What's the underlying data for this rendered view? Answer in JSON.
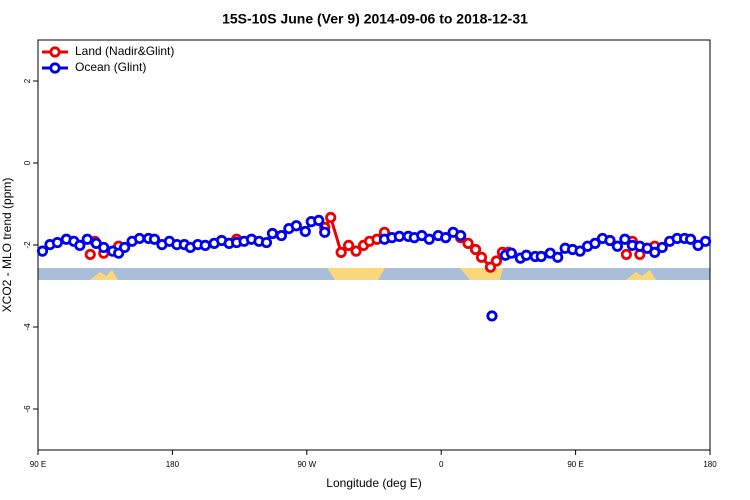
{
  "chart_data": {
    "type": "line",
    "title": "15S-10S June (Ver 9)   2014-09-06 to 2018-12-31",
    "x_label": "Longitude (deg E)",
    "y_label": "XCO2 - MLO trend (ppm)",
    "xlim": [
      90,
      540
    ],
    "ylim": [
      -7,
      3
    ],
    "xticks": [
      {
        "value": 90,
        "label": "90 E"
      },
      180,
      {
        "value": 270,
        "label": "90 W"
      },
      {
        "value": 360,
        "label": "0"
      },
      {
        "value": 450,
        "label": "90 E"
      },
      {
        "value": 540,
        "label": "180"
      }
    ],
    "yticks": [
      -6,
      -4,
      -2,
      0,
      2
    ],
    "legend": "top-left",
    "series": [
      {
        "name": "Land (Nadir&Glint)",
        "color": "#ee0000",
        "x": [
          125,
          126,
          128,
          131,
          134,
          139,
          144,
          180,
          223,
          250,
          282,
          286,
          293,
          298,
          303,
          308,
          312,
          317,
          322,
          350,
          373,
          378,
          383,
          387,
          393,
          397,
          401,
          405,
          440,
          484,
          486,
          488,
          490,
          493,
          498,
          503
        ],
        "values": [
          -2.23,
          null,
          -1.91,
          null,
          -2.2,
          null,
          -2.03,
          null,
          -1.86,
          null,
          -1.57,
          -1.33,
          -2.18,
          -2.01,
          -2.15,
          -2.01,
          -1.91,
          -1.86,
          -1.69,
          null,
          -1.82,
          -1.96,
          -2.11,
          -2.3,
          -2.54,
          -2.39,
          -2.18,
          -2.18,
          null,
          -2.23,
          null,
          -1.91,
          null,
          -2.23,
          null,
          -2.03
        ]
      },
      {
        "name": "Ocean (Glint)",
        "color": "#0000ee",
        "x": [
          93,
          98,
          103,
          109,
          114,
          118,
          123,
          129,
          134,
          140,
          144,
          148,
          153,
          158,
          164,
          168,
          173,
          178,
          183,
          188,
          192,
          197,
          202,
          208,
          213,
          218,
          223,
          228,
          233,
          238,
          243,
          247,
          253,
          258,
          263,
          269,
          273,
          278,
          282,
          302,
          322,
          327,
          332,
          338,
          342,
          347,
          352,
          358,
          363,
          368,
          373,
          388,
          394,
          398,
          403,
          407,
          413,
          417,
          423,
          427,
          433,
          438,
          443,
          448,
          453,
          458,
          463,
          468,
          473,
          478,
          483,
          488,
          493,
          498,
          503,
          508,
          513,
          518,
          523,
          527,
          532,
          537
        ],
        "values": [
          -2.15,
          -1.99,
          -1.94,
          -1.86,
          -1.91,
          -2.01,
          -1.86,
          -1.96,
          -2.06,
          -2.15,
          -2.2,
          -2.06,
          -1.91,
          -1.84,
          -1.84,
          -1.86,
          -1.99,
          -1.91,
          -1.99,
          -1.99,
          -2.06,
          -1.99,
          -2.01,
          -1.96,
          -1.89,
          -1.96,
          -1.94,
          -1.91,
          -1.86,
          -1.91,
          -1.94,
          -1.72,
          -1.77,
          -1.6,
          -1.53,
          -1.67,
          -1.43,
          -1.4,
          -1.69,
          null,
          -1.86,
          -1.82,
          -1.79,
          -1.79,
          -1.82,
          -1.77,
          -1.86,
          -1.77,
          -1.82,
          -1.69,
          -1.77,
          null,
          -3.73,
          null,
          -2.25,
          -2.2,
          -2.32,
          -2.25,
          -2.28,
          -2.28,
          -2.2,
          -2.3,
          -2.08,
          -2.11,
          -2.15,
          -2.03,
          -1.96,
          -1.84,
          -1.89,
          -2.03,
          -1.86,
          -2.01,
          -2.03,
          -2.08,
          -2.18,
          -2.06,
          -1.91,
          -1.84,
          -1.84,
          -1.86,
          -2.01,
          -1.91
        ]
      }
    ]
  }
}
